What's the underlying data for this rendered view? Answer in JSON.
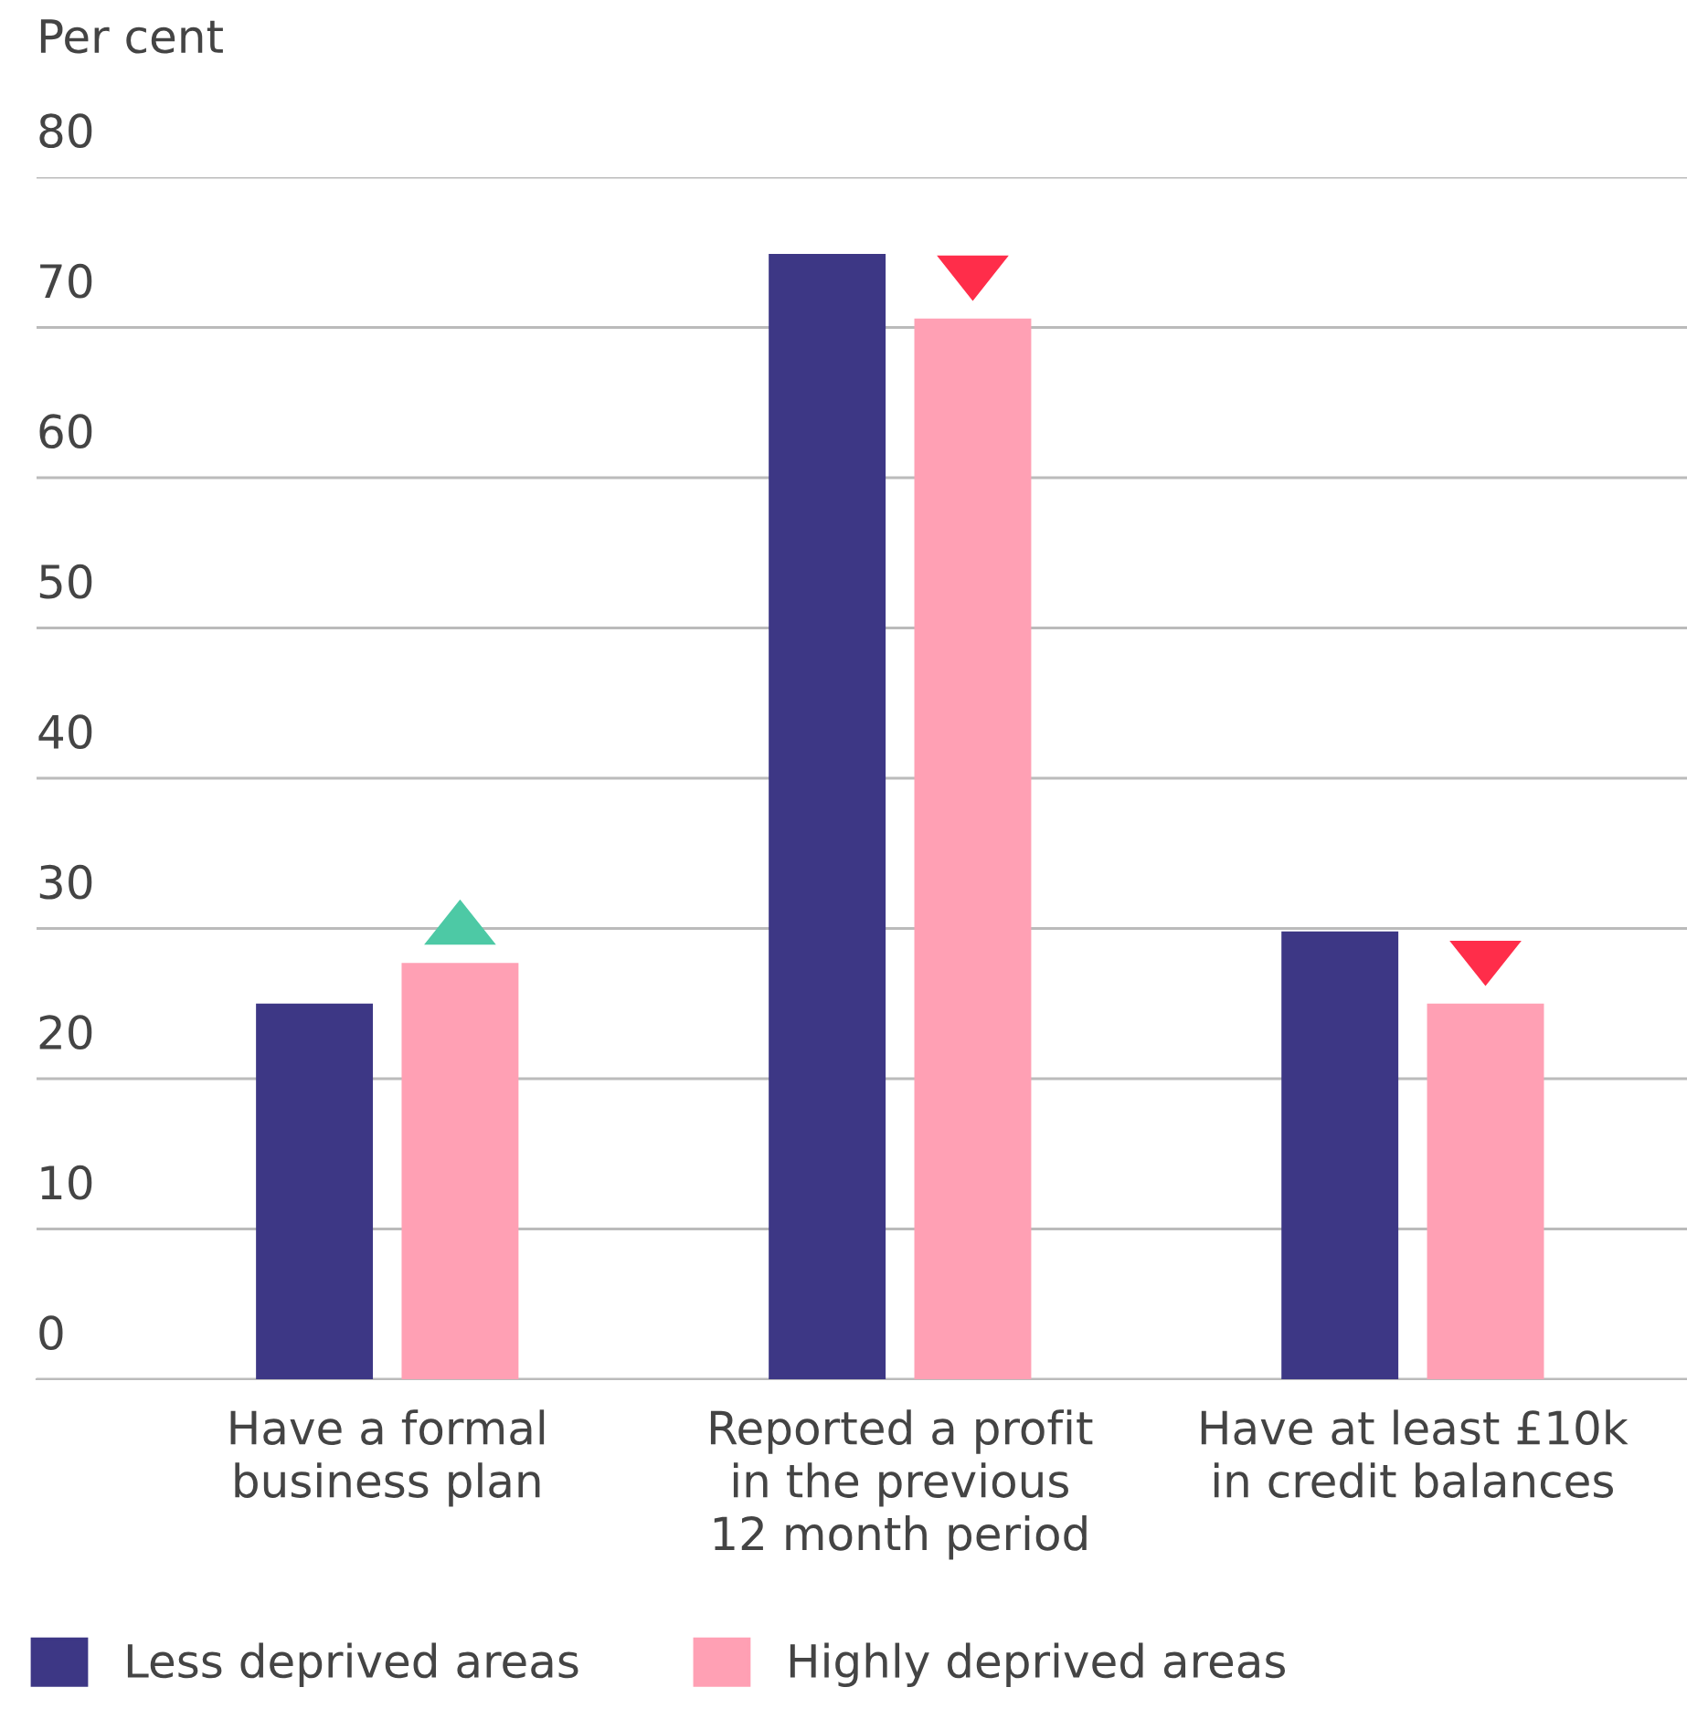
{
  "chart_data": {
    "type": "bar",
    "ylabel": "Per cent",
    "categories": [
      "Have a formal\nbusiness plan",
      "Reported a profit\nin the previous\n12 month period",
      "Have at least £10k\nin credit balances"
    ],
    "series": [
      {
        "name": "Less deprived areas",
        "color": "#3d3785",
        "values": [
          25.0,
          74.9,
          29.8
        ]
      },
      {
        "name": "Highly deprived areas",
        "color": "#ffa0b4",
        "values": [
          27.7,
          70.6,
          25.0
        ]
      }
    ],
    "ylim": [
      0,
      80
    ],
    "yticks": [
      0,
      10,
      20,
      30,
      40,
      50,
      60,
      70,
      80
    ],
    "grid": "y",
    "legend": "bottom"
  }
}
